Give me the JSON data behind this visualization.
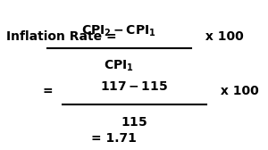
{
  "background_color": "#ffffff",
  "fig_width": 3.0,
  "fig_height": 1.68,
  "dpi": 100,
  "line1": {
    "label_left": "Inflation Rate = ",
    "numerator": "CPI",
    "num_sub2": "2",
    "separator": " - ",
    "num_cpi1": "CPI",
    "num_sub1": "1",
    "denominator": "CPI",
    "den_sub1": "1",
    "suffix": " x 100"
  },
  "line2": {
    "prefix": "= ",
    "numerator": "117 - 115",
    "denominator": "115",
    "suffix": " x 100"
  },
  "line3": {
    "text": "= 1.71"
  },
  "font_size": 10,
  "font_color": "#000000",
  "bold": true
}
